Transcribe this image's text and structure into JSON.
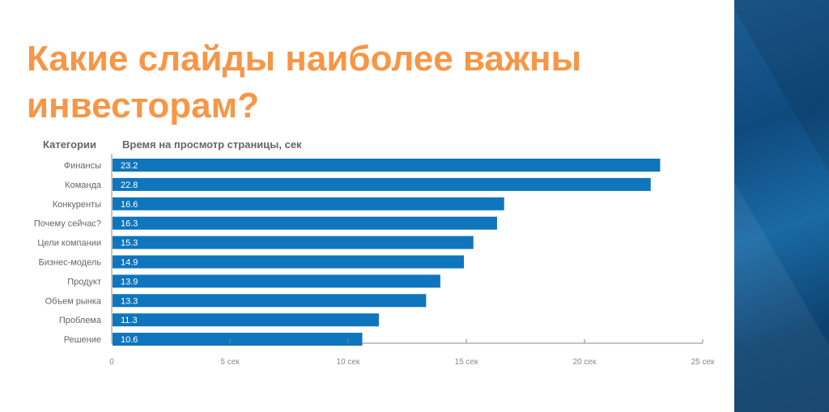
{
  "title_line1": "Какие слайды наиболее важны",
  "title_line2": "инвесторам?",
  "chart_data": {
    "type": "bar",
    "orientation": "horizontal",
    "category_header": "Категории",
    "value_header": "Время на просмотр страницы, сек",
    "categories": [
      "Финансы",
      "Команда",
      "Конкуренты",
      "Почему сейчас?",
      "Цели компании",
      "Бизнес-модель",
      "Продукт",
      "Объем рынка",
      "Проблема",
      "Решение"
    ],
    "values": [
      23.2,
      22.8,
      16.6,
      16.3,
      15.3,
      14.9,
      13.9,
      13.3,
      11.3,
      10.6
    ],
    "xlim": [
      0,
      25
    ],
    "x_ticks": [
      0,
      5,
      10,
      15,
      20,
      25
    ],
    "x_tick_labels": [
      "0",
      "5 сек",
      "10 сек",
      "15 сек",
      "20 сек",
      "25 сек"
    ],
    "bar_color": "#0f75bc",
    "grid": false
  }
}
